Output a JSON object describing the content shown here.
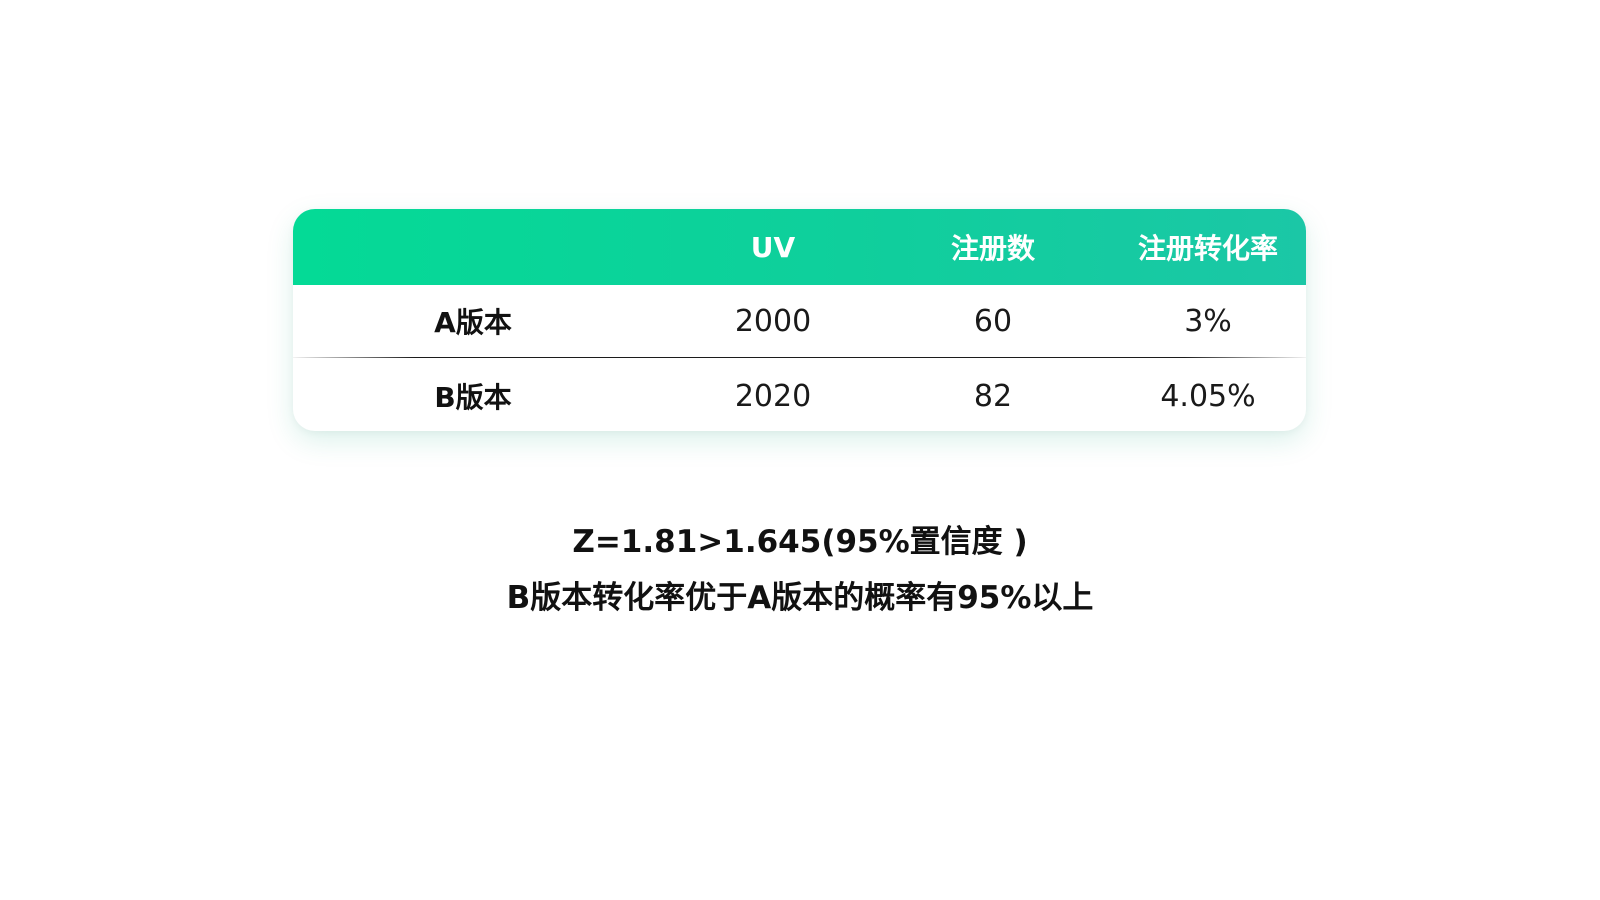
{
  "table": {
    "headers": {
      "label": "",
      "uv": "UV",
      "registrations": "注册数",
      "conversion_rate": "注册转化率"
    },
    "rows": [
      {
        "label": "A版本",
        "uv": "2000",
        "registrations": "60",
        "conversion_rate": "3%"
      },
      {
        "label": "B版本",
        "uv": "2020",
        "registrations": "82",
        "conversion_rate": "4.05%"
      }
    ],
    "header_gradient": [
      "#04da96",
      "#1bc7a6"
    ]
  },
  "summary": {
    "line1": "Z=1.81>1.645(95%置信度 )",
    "line2": "B版本转化率优于A版本的概率有95%以上"
  }
}
